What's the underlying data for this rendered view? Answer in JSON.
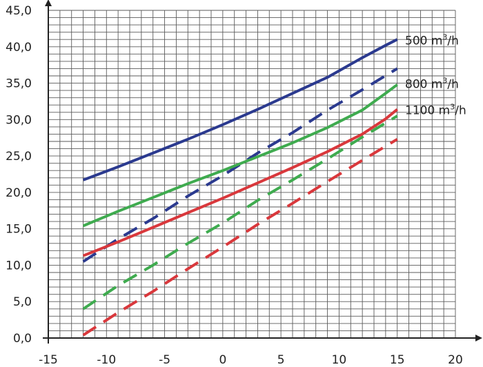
{
  "chart_data": {
    "type": "line",
    "title": "",
    "xlabel": "",
    "ylabel": "",
    "xlim": [
      -15,
      20
    ],
    "ylim": [
      0,
      45
    ],
    "grid": true,
    "x_ticks": [
      "-15",
      "-10",
      "-5",
      "0",
      "5",
      "10",
      "15",
      "20"
    ],
    "y_ticks": [
      "0,0",
      "5,0",
      "10,0",
      "15,0",
      "20,0",
      "25,0",
      "30,0",
      "35,0",
      "40,0",
      "45,0"
    ],
    "x_tick_values": [
      -15,
      -10,
      -5,
      0,
      5,
      10,
      15,
      20
    ],
    "y_tick_values": [
      0,
      5,
      10,
      15,
      20,
      25,
      30,
      35,
      40,
      45
    ],
    "series_labels": [
      {
        "text_main": "500 m",
        "text_sup": "3",
        "text_tail": "/h",
        "near_y": 40.8
      },
      {
        "text_main": "800 m",
        "text_sup": "3",
        "text_tail": "/h",
        "near_y": 34.8
      },
      {
        "text_main": "1100 m",
        "text_sup": "3",
        "text_tail": "/h",
        "near_y": 31.2
      }
    ],
    "series": [
      {
        "color": "#2b3a8f",
        "style": "solid",
        "x": [
          -12,
          -9,
          -6,
          -3,
          0,
          3,
          6,
          9,
          12,
          14,
          15
        ],
        "y": [
          21.7,
          23.5,
          25.4,
          27.3,
          29.3,
          31.4,
          33.6,
          35.8,
          38.5,
          40.2,
          41.0
        ]
      },
      {
        "color": "#2b3a8f",
        "style": "dashed",
        "x": [
          -12,
          -9,
          -6,
          -3,
          0,
          3,
          6,
          9,
          12,
          15
        ],
        "y": [
          10.5,
          13.6,
          16.4,
          19.5,
          22.3,
          25.4,
          28.2,
          31.3,
          34.1,
          37.0
        ]
      },
      {
        "color": "#3fab4f",
        "style": "solid",
        "x": [
          -12,
          -9,
          -6,
          -3,
          0,
          3,
          6,
          9,
          12,
          14,
          15
        ],
        "y": [
          15.4,
          17.4,
          19.3,
          21.2,
          23.0,
          24.9,
          26.8,
          28.9,
          31.3,
          33.6,
          34.8
        ]
      },
      {
        "color": "#3fab4f",
        "style": "dashed",
        "x": [
          -12,
          -9,
          -6,
          -3,
          0,
          3,
          6,
          9,
          12,
          15
        ],
        "y": [
          4.0,
          7.2,
          10.0,
          13.0,
          15.8,
          18.9,
          21.7,
          24.6,
          27.6,
          30.5
        ]
      },
      {
        "color": "#d9383c",
        "style": "solid",
        "x": [
          -12,
          -9,
          -6,
          -3,
          0,
          3,
          6,
          9,
          12,
          14,
          15
        ],
        "y": [
          11.3,
          13.2,
          15.2,
          17.2,
          19.2,
          21.3,
          23.4,
          25.6,
          28.0,
          30.1,
          31.4
        ]
      },
      {
        "color": "#d9383c",
        "style": "dashed",
        "x": [
          -12,
          -9,
          -6,
          -3,
          0,
          3,
          6,
          9,
          12,
          15
        ],
        "y": [
          0.4,
          3.5,
          6.4,
          9.5,
          12.5,
          15.6,
          18.5,
          21.5,
          24.4,
          27.3
        ]
      }
    ]
  }
}
